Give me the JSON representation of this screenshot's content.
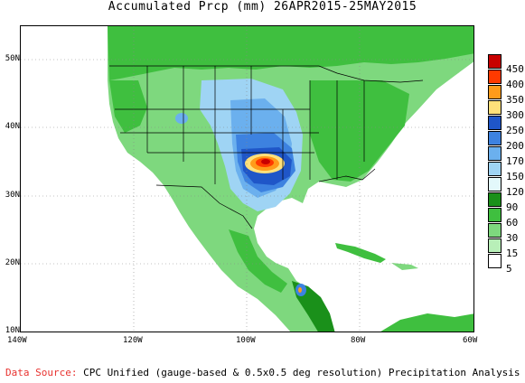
{
  "title": "Accumulated Prcp (mm) 26APR2015-25MAY2015",
  "source_prefix": "Data Source:",
  "source_text": " CPC Unified (gauge-based & 0.5x0.5 deg resolution) Precipitation Analysis",
  "lat_labels": [
    "50N",
    "40N",
    "30N",
    "20N",
    "10N"
  ],
  "lon_labels": [
    "140W",
    "120W",
    "100W",
    "80W",
    "60W"
  ],
  "legend": {
    "labels": [
      "450",
      "400",
      "350",
      "300",
      "250",
      "200",
      "170",
      "150",
      "120",
      "90",
      "60",
      "30",
      "15",
      "5"
    ],
    "colors": [
      "#c80000",
      "#ff3a00",
      "#ff9b1a",
      "#ffe07a",
      "#1f56c8",
      "#3d82e0",
      "#6bb0ee",
      "#9fd4f4",
      "#e3f8fb",
      "#1a901a",
      "#3fbf3f",
      "#7ed87e",
      "#b8efb8",
      "#ffffff"
    ]
  },
  "colors": {
    "source_red": "#e8322f",
    "land_green": "#3fbf3f",
    "grid": "#888888"
  }
}
